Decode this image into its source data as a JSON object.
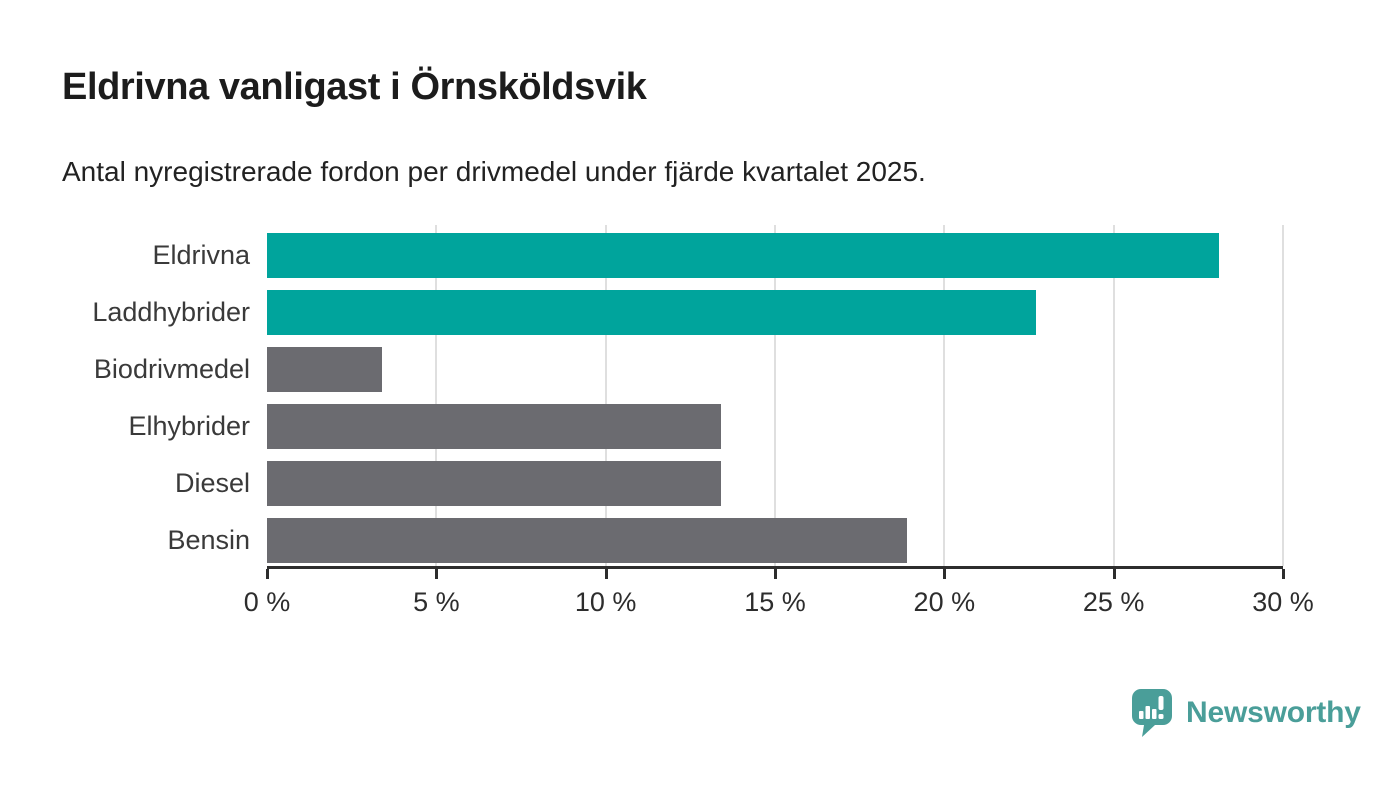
{
  "chart_data": {
    "type": "bar",
    "orientation": "horizontal",
    "title": "Eldrivna vanligast i Örnsköldsvik",
    "subtitle": "Antal nyregistrerade fordon per drivmedel under fjärde kvartalet 2025.",
    "categories": [
      "Eldrivna",
      "Laddhybrider",
      "Biodrivmedel",
      "Elhybrider",
      "Diesel",
      "Bensin"
    ],
    "values": [
      28.1,
      22.7,
      3.4,
      13.4,
      13.4,
      18.9
    ],
    "unit": "%",
    "xlim": [
      0,
      30
    ],
    "x_ticks": [
      0,
      5,
      10,
      15,
      20,
      25,
      30
    ],
    "x_tick_labels": [
      "0 %",
      "5 %",
      "10 %",
      "15 %",
      "20 %",
      "25 %",
      "30 %"
    ],
    "bar_colors": [
      "#00a49c",
      "#00a49c",
      "#6b6b70",
      "#6b6b70",
      "#6b6b70",
      "#6b6b70"
    ],
    "accent_color": "#00a49c",
    "neutral_color": "#6b6b70",
    "grid": "vertical",
    "gridline_color": "#dfdfdf",
    "legend": "none"
  },
  "footer": {
    "brand": "Newsworthy",
    "brand_color": "#4a9e99"
  }
}
